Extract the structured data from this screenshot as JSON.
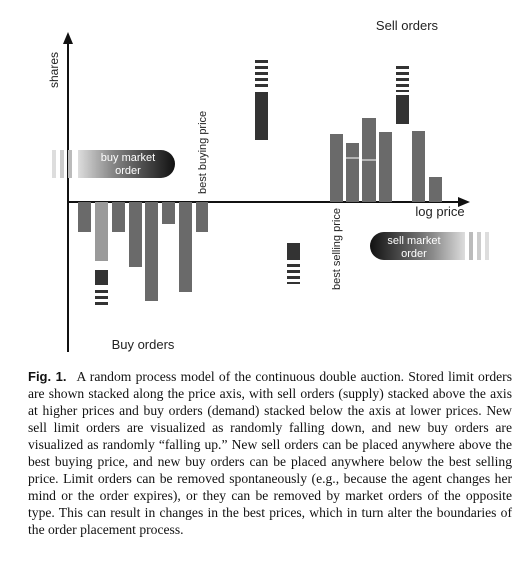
{
  "figure": {
    "sell_orders_label": "Sell orders",
    "y_axis_label": "shares",
    "x_axis_label": "log price",
    "buy_orders_label": "Buy orders",
    "best_buying_price": "best buying price",
    "best_selling_price": "best selling price",
    "buy_market_order": "buy market order",
    "sell_market_order": "sell market order"
  },
  "caption": {
    "label": "Fig. 1.",
    "text": "A random process model of the continuous double auction. Stored limit orders are shown stacked along the price axis, with sell orders (supply) stacked above the axis at higher prices and buy orders (demand) stacked below the axis at lower prices. New sell limit orders are visualized as randomly falling down, and new buy orders are visualized as randomly “falling up.” New sell orders can be placed anywhere above the best buying price, and new buy orders can be placed anywhere below the best selling price. Limit orders can be removed spontaneously (e.g., because the agent changes her mind or the order expires), or they can be removed by market orders of the opposite type. This can result in changes in the best prices, which in turn alter the boundaries of the order placement process."
  }
}
